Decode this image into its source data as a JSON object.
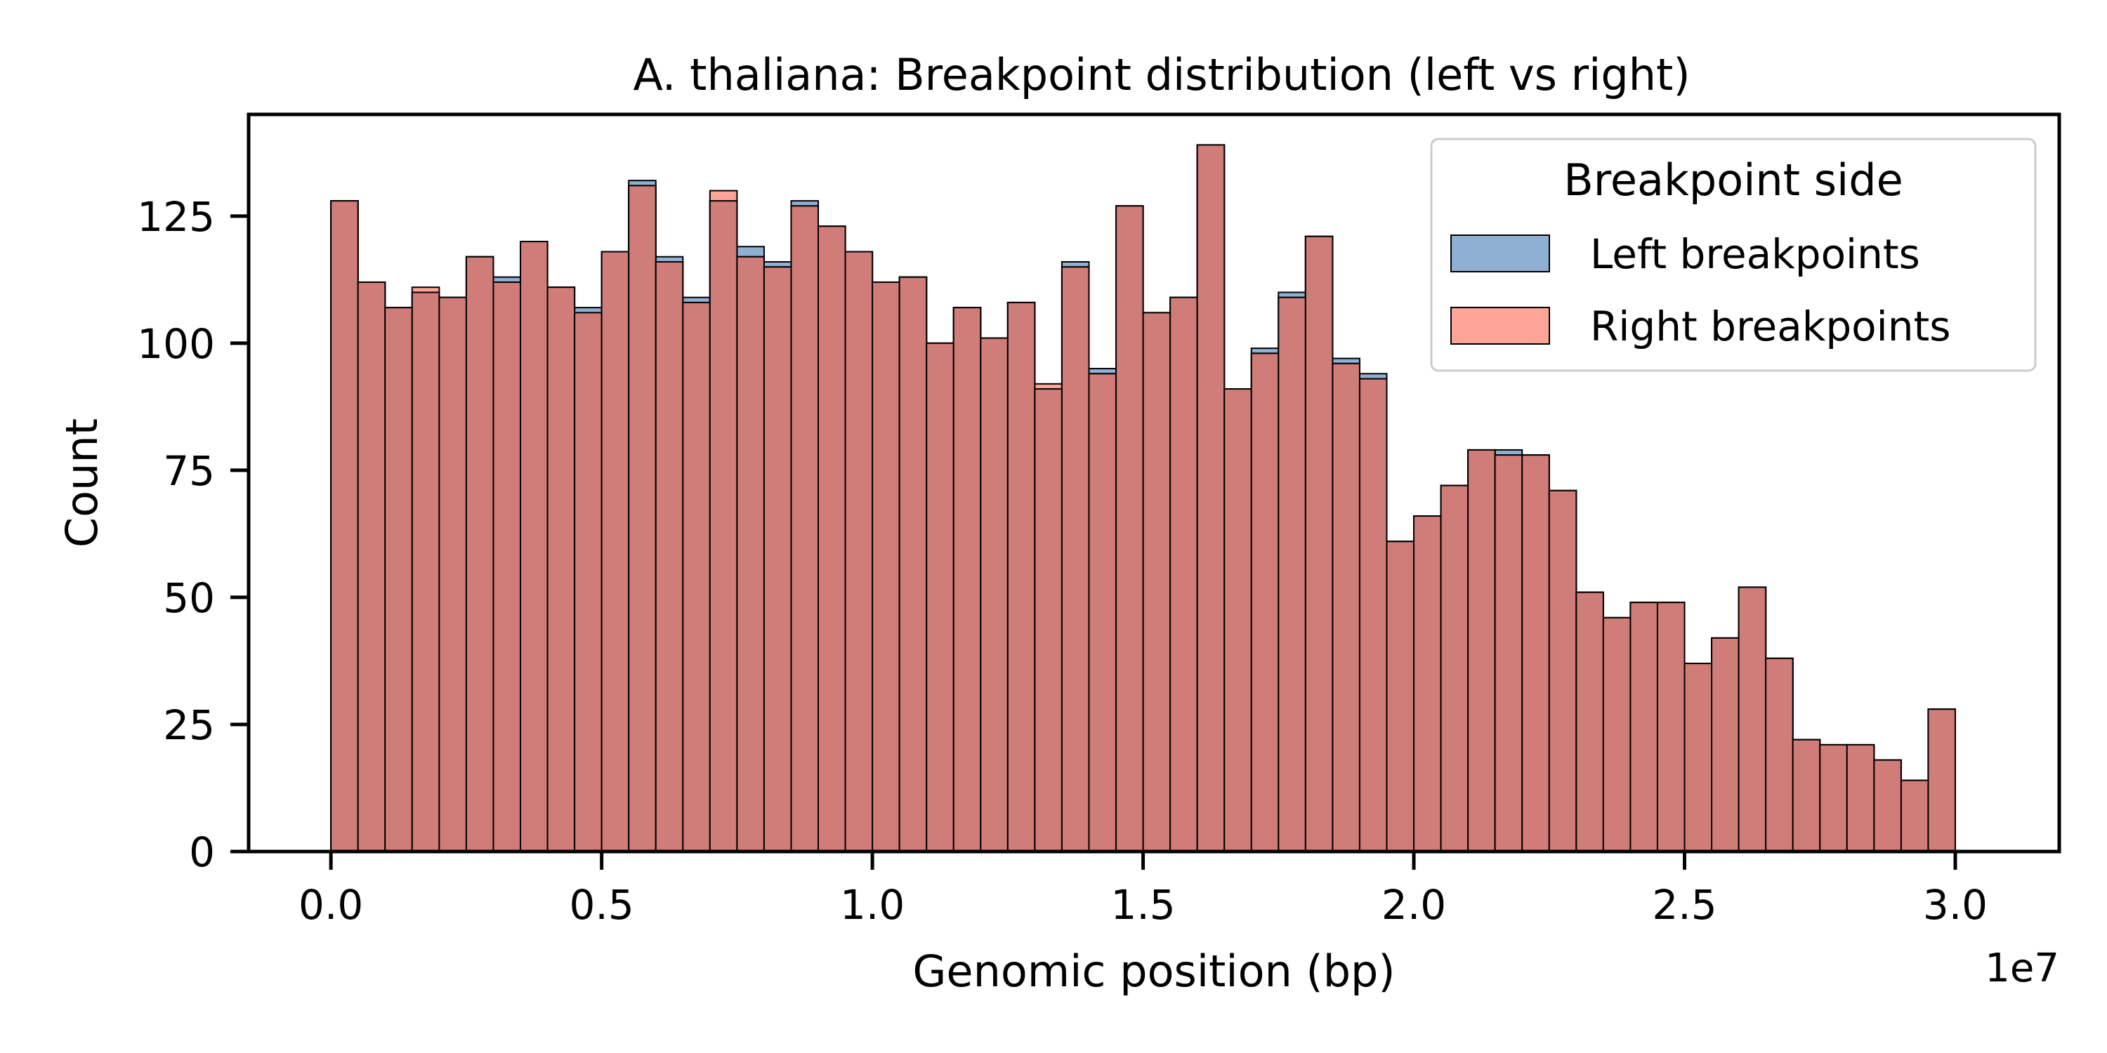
{
  "chart_data": {
    "type": "bar",
    "subtype": "overlaid histogram",
    "title": "A. thaliana: Breakpoint distribution (left vs right)",
    "xlabel": "Genomic position (bp)",
    "ylabel": "Count",
    "x_offset_label": "1e7",
    "xlim": [
      -1520000,
      31920000
    ],
    "ylim": [
      0,
      145
    ],
    "bin_start": 0,
    "bin_width": 500000,
    "xticks": [
      0,
      0.5,
      1.0,
      1.5,
      2.0,
      2.5,
      3.0
    ],
    "xtick_labels": [
      "0.0",
      "0.5",
      "1.0",
      "1.5",
      "2.0",
      "2.5",
      "3.0"
    ],
    "yticks": [
      0,
      25,
      50,
      75,
      100,
      125
    ],
    "ytick_labels": [
      "0",
      "25",
      "50",
      "75",
      "100",
      "125"
    ],
    "grid": false,
    "legend": {
      "title": "Breakpoint side",
      "position": "top-right"
    },
    "series": [
      {
        "name": "Left breakpoints",
        "color": "#8FB0D2",
        "values": [
          128,
          112,
          107,
          110,
          109,
          117,
          113,
          120,
          111,
          107,
          118,
          132,
          117,
          109,
          128,
          119,
          116,
          128,
          123,
          118,
          112,
          113,
          100,
          107,
          101,
          108,
          91,
          116,
          95,
          127,
          106,
          109,
          139,
          91,
          99,
          110,
          121,
          97,
          94,
          61,
          66,
          72,
          79,
          79,
          78,
          71,
          51,
          46,
          49,
          49,
          37,
          42,
          52,
          38,
          22,
          21,
          21,
          18,
          14,
          28
        ]
      },
      {
        "name": "Right breakpoints",
        "color": "#FCA497",
        "values": [
          128,
          112,
          107,
          111,
          109,
          117,
          112,
          120,
          111,
          106,
          118,
          131,
          116,
          108,
          130,
          117,
          115,
          127,
          123,
          118,
          112,
          113,
          100,
          107,
          101,
          108,
          92,
          115,
          94,
          127,
          106,
          109,
          139,
          91,
          98,
          109,
          121,
          96,
          93,
          61,
          66,
          72,
          79,
          78,
          78,
          71,
          51,
          46,
          49,
          49,
          37,
          42,
          52,
          38,
          22,
          21,
          21,
          18,
          14,
          28
        ]
      }
    ],
    "overlap_color": "#D07C79"
  }
}
